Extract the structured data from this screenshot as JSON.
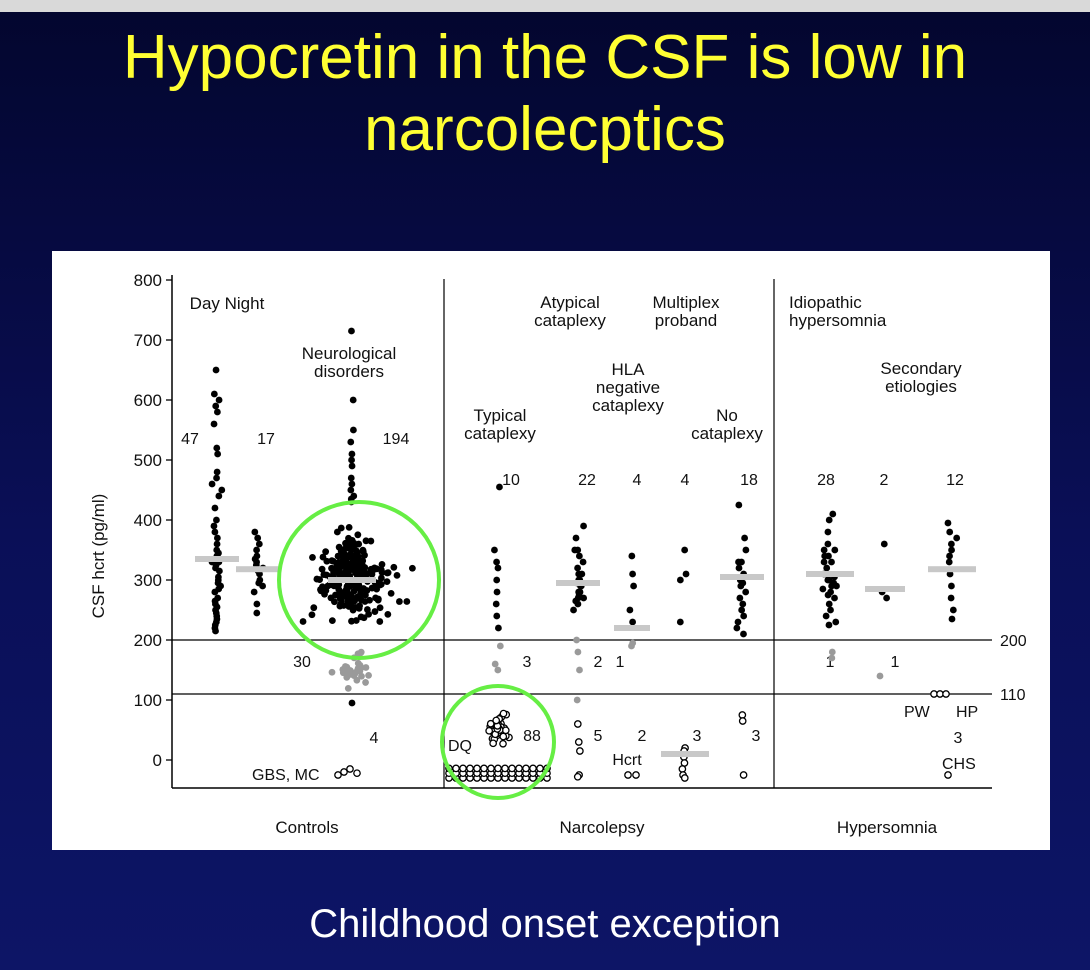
{
  "slide": {
    "title_line1": "Hypocretin in the CSF is low in",
    "title_line2": "narcolecptics",
    "caption": "Childhood onset exception",
    "title_color": "#ffff33",
    "background_color": "#0a0f57"
  },
  "chart_data": {
    "type": "scatter",
    "ylabel": "CSF hcrt (pg/ml)",
    "ylim": [
      -40,
      800
    ],
    "yticks": [
      "0",
      "100",
      "200",
      "300",
      "400",
      "500",
      "600",
      "700",
      "800"
    ],
    "thresholds": [
      {
        "value": 200,
        "label": "200"
      },
      {
        "value": 110,
        "label": "110"
      }
    ],
    "panels": [
      {
        "name": "Controls",
        "range": [
          0,
          270
        ]
      },
      {
        "name": "Narcolepsy",
        "range": [
          270,
          330
        ]
      },
      {
        "name": "Hypersomnia",
        "range": [
          330,
          600
        ]
      }
    ],
    "group_labels": [
      {
        "key": "day_night",
        "lines": [
          "Day  Night"
        ]
      },
      {
        "key": "neuro",
        "lines": [
          "Neurological",
          "disorders"
        ]
      },
      {
        "key": "typical",
        "lines": [
          "Typical",
          "cataplexy"
        ]
      },
      {
        "key": "atypical",
        "lines": [
          "Atypical",
          "cataplexy"
        ]
      },
      {
        "key": "multiplex",
        "lines": [
          "Multiplex",
          "proband"
        ]
      },
      {
        "key": "hla",
        "lines": [
          "HLA",
          "negative",
          "cataplexy"
        ]
      },
      {
        "key": "nocat",
        "lines": [
          "No",
          "cataplexy"
        ]
      },
      {
        "key": "idio",
        "lines": [
          "Idiopathic",
          "hypersomnia"
        ]
      },
      {
        "key": "secondary",
        "lines": [
          "Secondary",
          "etiologies"
        ]
      }
    ],
    "groups": [
      {
        "key": "day",
        "n_high": "47",
        "median": 335,
        "min": 215,
        "max": 650
      },
      {
        "key": "night",
        "n_high": "17",
        "median": 315,
        "min": 240,
        "max": 380
      },
      {
        "key": "neuro",
        "n_high": "194",
        "n_mid": "30",
        "n_low": "4",
        "median": 300,
        "min": 95,
        "max": 715,
        "low_note": "GBS, MC"
      },
      {
        "key": "typical",
        "n_high": "10",
        "n_mid": "3",
        "n_low": "88",
        "median": null,
        "min": -30,
        "max": 455,
        "low_note": "DQ"
      },
      {
        "key": "atypical",
        "n_high": "22",
        "n_mid": "2",
        "n_low": "5",
        "median": 295,
        "min": -30,
        "max": 390
      },
      {
        "key": "hla",
        "n_high": "4",
        "n_mid": "1",
        "n_low": "2",
        "median": 220,
        "min": -30,
        "max": 340,
        "low_note": "Hcrt"
      },
      {
        "key": "multiplex",
        "n_high": "4",
        "n_low": "3",
        "median": 10,
        "min": -30,
        "max": 350
      },
      {
        "key": "nocat",
        "n_high": "18",
        "n_low": "3",
        "median": 305,
        "min": -30,
        "max": 425
      },
      {
        "key": "idio",
        "n_high": "28",
        "n_mid": "1",
        "median": 310,
        "min": 170,
        "max": 410
      },
      {
        "key": "secondary_mid",
        "n_high": "2",
        "n_mid": "1",
        "median": 285,
        "min": 140,
        "max": 360
      },
      {
        "key": "secondary_right",
        "n_high": "12",
        "n_low": "3",
        "median": 318,
        "min": -25,
        "max": 395,
        "low_note_1": "PW",
        "low_note_2": "HP",
        "low_note_3": "CHS"
      }
    ],
    "highlight_circles": [
      {
        "target": "neuro",
        "color": "#66ee44"
      },
      {
        "target": "typical",
        "color": "#66ee44"
      }
    ]
  }
}
